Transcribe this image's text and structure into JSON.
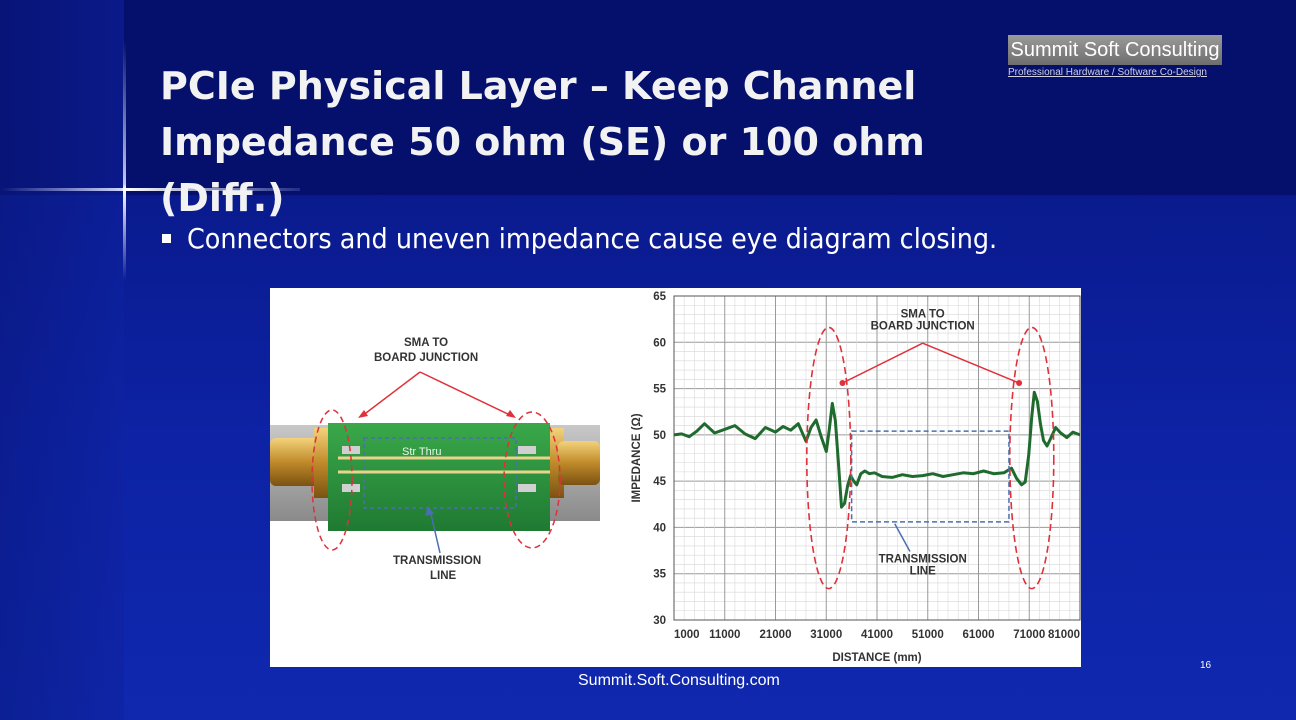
{
  "slide": {
    "title_line1": "PCIe Physical Layer – Keep Channel",
    "title_line2": "Impedance 50 ohm (SE) or 100 ohm (Diff.)",
    "logo": {
      "name": "Summit Soft Consulting",
      "tagline": "Professional Hardware / Software Co-Design"
    },
    "bullets": [
      {
        "text": "Connectors and uneven impedance cause eye diagram closing."
      }
    ],
    "footer": {
      "url": "Summit.Soft.Consulting.com",
      "page_number": "16"
    },
    "colors": {
      "background": "#0c1c92",
      "title_text": "#f2f2f2",
      "trace": "#1f6b2e",
      "callout": "#e0303a",
      "box": "#4a6fb0"
    }
  },
  "figure": {
    "photo": {
      "board_label": "Str Thru",
      "callout_top_line1": "SMA TO",
      "callout_top_line2": "BOARD JUNCTION",
      "callout_bottom_line1": "TRANSMISSION",
      "callout_bottom_line2": "LINE"
    },
    "chart_callouts": {
      "top_line1": "SMA TO",
      "top_line2": "BOARD JUNCTION",
      "bottom_line1": "TRANSMISSION",
      "bottom_line2": "LINE"
    }
  },
  "chart_data": {
    "type": "line",
    "title": "",
    "xlabel": "DISTANCE (mm)",
    "ylabel": "IMPEDANCE (Ω)",
    "xlim": [
      1000,
      81000
    ],
    "ylim": [
      30,
      65
    ],
    "xticks": [
      "1000",
      "11000",
      "21000",
      "31000",
      "41000",
      "51000",
      "61000",
      "71000",
      "81000"
    ],
    "yticks": [
      "30",
      "35",
      "40",
      "45",
      "50",
      "55",
      "60",
      "65"
    ],
    "grid": true,
    "series": [
      {
        "x": [
          1000,
          2500,
          4000,
          5500,
          7000,
          9000,
          11000,
          13000,
          15000,
          17000,
          19000,
          21000,
          22500,
          24000,
          25500,
          27000,
          28000,
          29000,
          30000,
          31000,
          31600,
          32200,
          32800,
          33400,
          34000,
          34600,
          35200,
          35800,
          36400,
          37000,
          37800,
          38600,
          39500,
          40500,
          42000,
          44000,
          46000,
          48000,
          50000,
          52000,
          54000,
          56000,
          58000,
          60000,
          62000,
          64000,
          66000,
          67500,
          68500,
          69500,
          70200,
          70900,
          71500,
          72000,
          72600,
          73200,
          73800,
          74500,
          75300,
          76200,
          77200,
          78400,
          79600,
          81000
        ],
        "y": [
          50.0,
          50.1,
          49.8,
          50.4,
          51.2,
          50.2,
          50.6,
          51.0,
          50.1,
          49.6,
          50.8,
          50.3,
          50.9,
          50.5,
          51.2,
          49.3,
          50.8,
          51.6,
          49.8,
          48.2,
          50.6,
          53.4,
          51.5,
          47.0,
          42.2,
          42.6,
          44.5,
          45.6,
          45.0,
          44.6,
          45.8,
          46.1,
          45.8,
          45.9,
          45.5,
          45.4,
          45.7,
          45.5,
          45.6,
          45.8,
          45.5,
          45.7,
          45.9,
          45.8,
          46.1,
          45.8,
          45.9,
          46.4,
          45.3,
          44.6,
          44.9,
          47.8,
          52.0,
          54.6,
          53.6,
          51.2,
          49.4,
          48.8,
          49.7,
          50.8,
          50.2,
          49.7,
          50.3,
          50.0
        ]
      }
    ],
    "annotations": [
      "SMA TO BOARD JUNCTION",
      "TRANSMISSION LINE"
    ]
  }
}
